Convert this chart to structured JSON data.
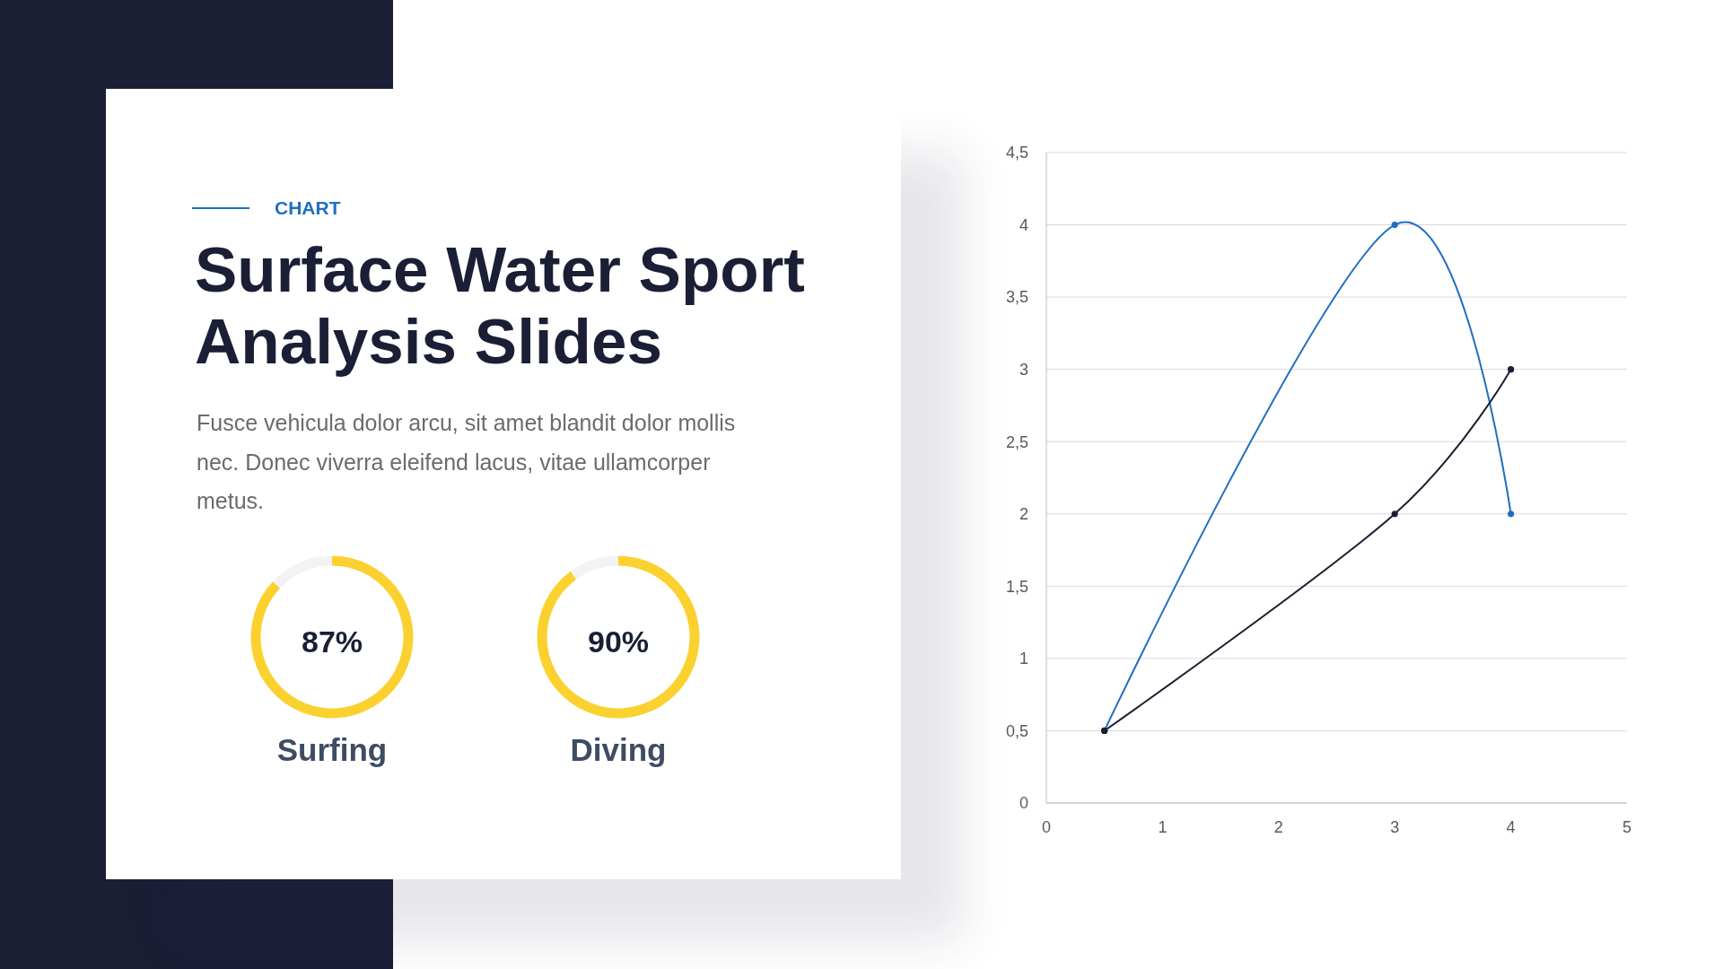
{
  "chart_data": [
    {
      "type": "other",
      "subtitle": "CHART",
      "title": "Surface Water Sport Analysis Slides",
      "annotations": [
        "Fusce vehicula dolor arcu, sit amet blandit dolor mollis nec. Donec viverra eleifend lacus, vitae ullamcorper metus."
      ]
    },
    {
      "type": "donut",
      "title": "Surfing",
      "categories": [
        null,
        null
      ],
      "values": [
        87,
        13
      ],
      "colors": [
        "#fbd130",
        "#f3f3f6"
      ],
      "value_labels": [
        "87%",
        null
      ]
    },
    {
      "type": "donut",
      "title": "Diving",
      "categories": [
        null,
        null
      ],
      "values": [
        90,
        10
      ],
      "colors": [
        "#fbd130",
        "#f3f3f6"
      ],
      "value_labels": [
        "90%",
        null
      ]
    },
    {
      "type": "line",
      "series": [
        {
          "color": "#1f6fc0",
          "x": [
            0.5,
            3,
            4
          ],
          "values": [
            0.5,
            4,
            2
          ]
        },
        {
          "color": "#1c1d30",
          "x": [
            0.5,
            3,
            4
          ],
          "values": [
            0.5,
            2,
            3
          ]
        }
      ],
      "xlim": [
        0,
        5
      ],
      "xticks": [
        0,
        1,
        2,
        3,
        4,
        5
      ],
      "ylim": [
        0,
        4.5
      ],
      "yticks": [
        0,
        {
          "value": 0.5,
          "label": "0,5"
        },
        1,
        {
          "value": 1.5,
          "label": "1,5"
        },
        2,
        {
          "value": 2.5,
          "label": "2,5"
        },
        3,
        {
          "value": 3.5,
          "label": "3,5"
        },
        4,
        {
          "value": 4.5,
          "label": "4,5"
        }
      ],
      "grid": "y",
      "marker": "circle",
      "line_style": "solid"
    }
  ]
}
